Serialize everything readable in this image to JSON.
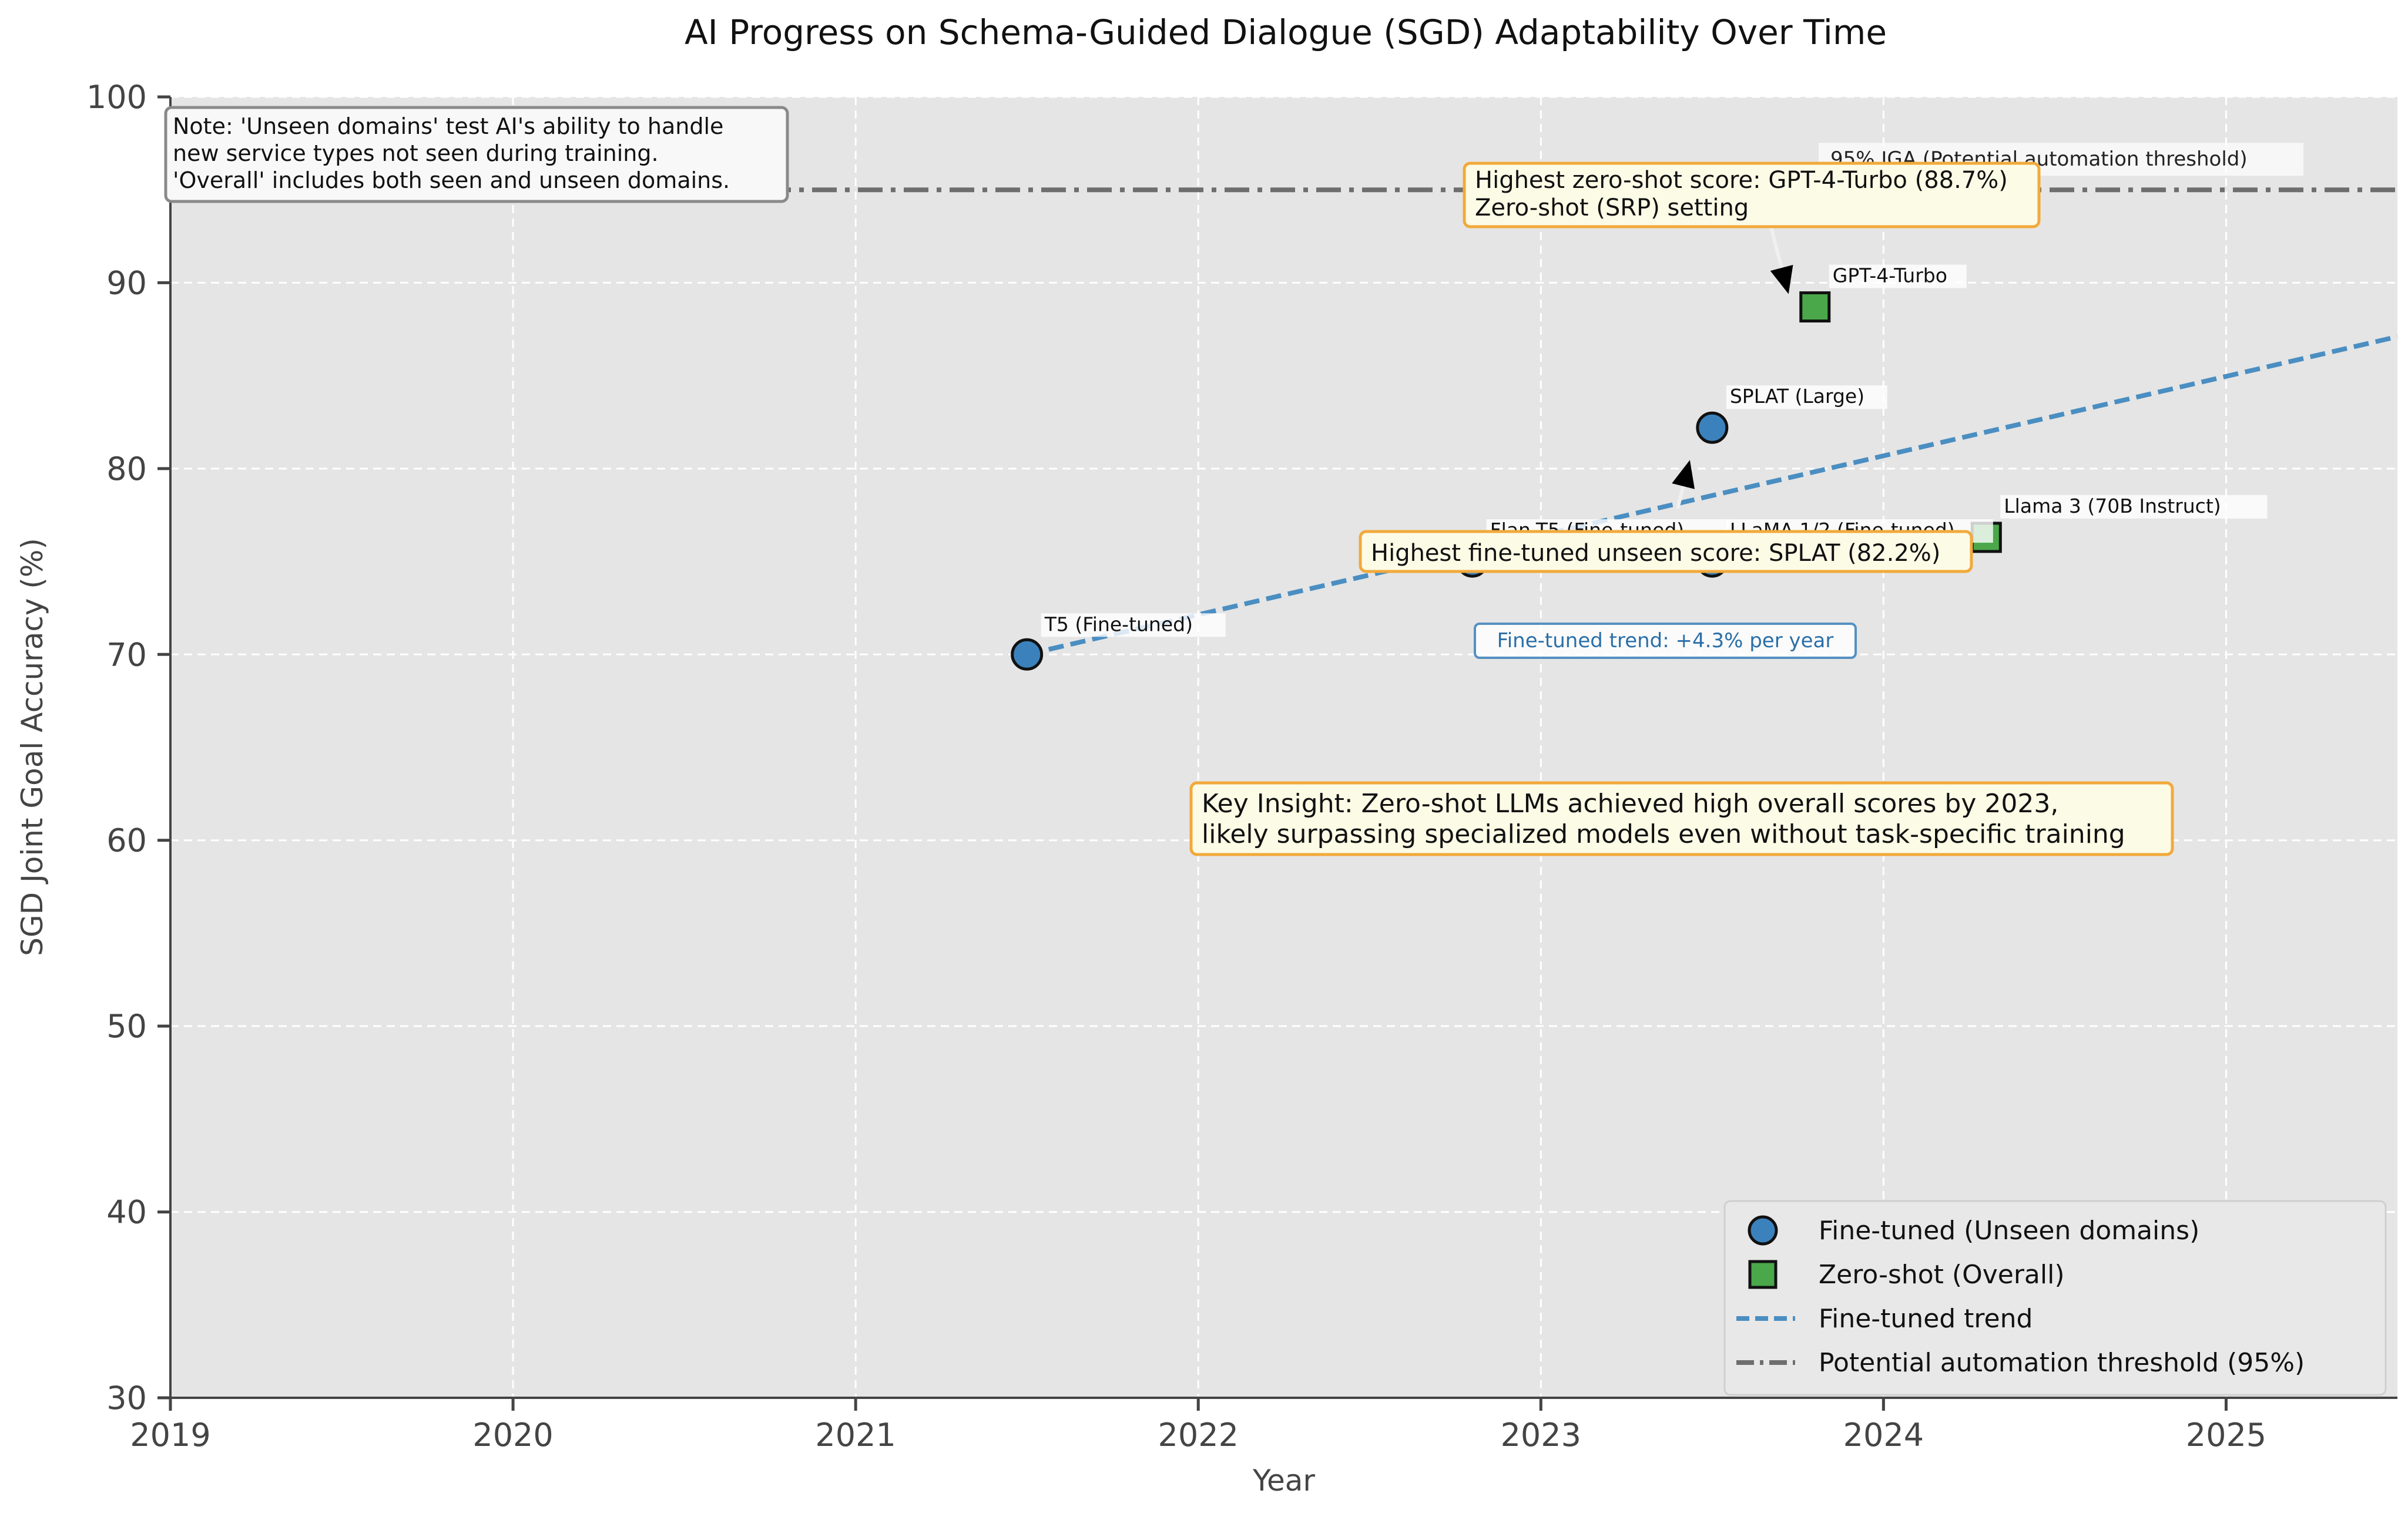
{
  "chart_data": {
    "type": "scatter",
    "title": "AI Progress on Schema-Guided Dialogue (SGD) Adaptability Over Time",
    "xlabel": "Year",
    "ylabel": "SGD Joint Goal Accuracy (%)",
    "xlim": [
      2019,
      2025.5
    ],
    "ylim": [
      30,
      100
    ],
    "xticks": [
      "2019",
      "2020",
      "2021",
      "2022",
      "2023",
      "2024",
      "2025"
    ],
    "yticks": [
      "30",
      "40",
      "50",
      "60",
      "70",
      "80",
      "90",
      "100"
    ],
    "grid": true,
    "legend_position": "bottom-right",
    "series": [
      {
        "name": "Fine-tuned (Unseen domains)",
        "marker": "circle",
        "color": "#3b82bd",
        "points": [
          {
            "x": 2021.5,
            "y": 70.0,
            "label": "T5 (Fine-tuned)"
          },
          {
            "x": 2022.8,
            "y": 75.0,
            "label": "Flan-T5 (Fine-tuned)"
          },
          {
            "x": 2023.5,
            "y": 82.2,
            "label": "SPLAT (Large)"
          },
          {
            "x": 2023.5,
            "y": 75.0,
            "label": "LLaMA 1/2 (Fine-tuned)"
          }
        ]
      },
      {
        "name": "Zero-shot (Overall)",
        "marker": "square",
        "color": "#4aa84a",
        "points": [
          {
            "x": 2023.8,
            "y": 88.7,
            "label": "GPT-4-Turbo"
          },
          {
            "x": 2024.3,
            "y": 76.3,
            "label": "Llama 3 (70B Instruct)"
          }
        ]
      }
    ],
    "trend": {
      "name": "Fine-tuned trend",
      "color": "#4a8ec2",
      "from": [
        2021.5,
        70.0
      ],
      "to": [
        2025.5,
        87.1
      ],
      "label": "Fine-tuned trend: +4.3% per year"
    },
    "threshold": {
      "name": "Potential automation threshold (95%)",
      "value": 95,
      "color": "#6e6e6e",
      "label": "95% JGA (Potential automation threshold)"
    },
    "annotations": {
      "note": [
        "Note: 'Unseen domains' test AI's ability to handle",
        "new service types not seen during training.",
        "'Overall' includes both seen and unseen domains."
      ],
      "zero_shot_best": [
        "Highest zero-shot score: GPT-4-Turbo (88.7%)",
        "Zero-shot (SRP) setting"
      ],
      "finetuned_best": [
        "Highest fine-tuned unseen score: SPLAT (82.2%)"
      ],
      "key_insight": [
        "Key Insight: Zero-shot LLMs achieved high overall scores by 2023,",
        "likely surpassing specialized models even without task-specific training"
      ]
    }
  }
}
